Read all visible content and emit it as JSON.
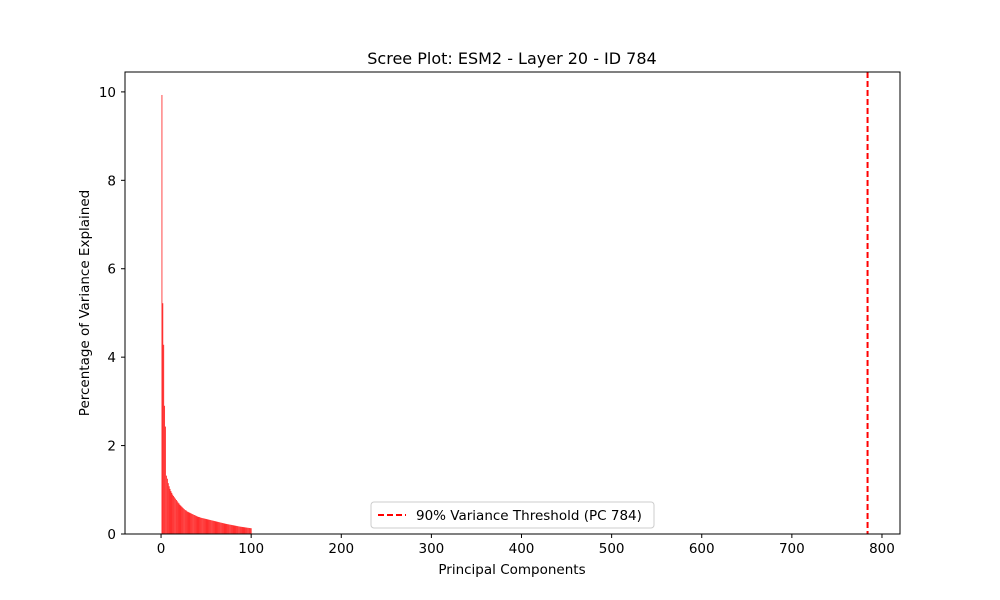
{
  "chart_data": {
    "type": "bar",
    "title": "Scree Plot: ESM2 - Layer 20 - ID 784",
    "xlabel": "Principal Components",
    "ylabel": "Percentage of Variance Explained",
    "xlim": [
      -40,
      820
    ],
    "ylim": [
      0,
      10.45
    ],
    "xticks": [
      0,
      100,
      200,
      300,
      400,
      500,
      600,
      700,
      800
    ],
    "yticks": [
      0,
      2,
      4,
      6,
      8,
      10
    ],
    "bar_color": "#ff0000",
    "grid": false,
    "series": [
      {
        "x": [
          1,
          2,
          3,
          4,
          5,
          6,
          7,
          8,
          9,
          10,
          11,
          12,
          13,
          14,
          15,
          16,
          17,
          18,
          19,
          20,
          21,
          22,
          23,
          24,
          25,
          26,
          27,
          28,
          29,
          30,
          31,
          32,
          33,
          34,
          35,
          36,
          37,
          38,
          39,
          40,
          41,
          42,
          43,
          44,
          45,
          46,
          47,
          48,
          49,
          50,
          51,
          52,
          53,
          54,
          55,
          56,
          57,
          58,
          59,
          60,
          61,
          62,
          63,
          64,
          65,
          66,
          67,
          68,
          69,
          70,
          71,
          72,
          73,
          74,
          75,
          76,
          77,
          78,
          79,
          80,
          81,
          82,
          83,
          84,
          85,
          86,
          87,
          88,
          89,
          90,
          91,
          92,
          93,
          94,
          95,
          96,
          97,
          98,
          99,
          100
        ],
        "values": [
          9.93,
          5.22,
          4.28,
          2.9,
          2.43,
          1.32,
          1.25,
          1.15,
          1.08,
          1.02,
          0.97,
          0.93,
          0.89,
          0.86,
          0.83,
          0.8,
          0.77,
          0.74,
          0.71,
          0.69,
          0.66,
          0.64,
          0.62,
          0.6,
          0.58,
          0.56,
          0.54,
          0.53,
          0.51,
          0.5,
          0.49,
          0.48,
          0.47,
          0.46,
          0.45,
          0.44,
          0.43,
          0.42,
          0.41,
          0.4,
          0.39,
          0.385,
          0.38,
          0.37,
          0.365,
          0.36,
          0.355,
          0.35,
          0.345,
          0.34,
          0.335,
          0.33,
          0.325,
          0.32,
          0.315,
          0.31,
          0.305,
          0.3,
          0.295,
          0.29,
          0.285,
          0.28,
          0.275,
          0.27,
          0.265,
          0.26,
          0.255,
          0.25,
          0.245,
          0.24,
          0.235,
          0.23,
          0.226,
          0.222,
          0.218,
          0.214,
          0.21,
          0.206,
          0.202,
          0.198,
          0.194,
          0.19,
          0.186,
          0.182,
          0.178,
          0.174,
          0.17,
          0.166,
          0.163,
          0.16,
          0.157,
          0.154,
          0.151,
          0.148,
          0.145,
          0.142,
          0.139,
          0.136,
          0.133,
          0.13
        ]
      }
    ],
    "threshold": {
      "x": 784,
      "label": "90% Variance Threshold (PC 784)",
      "color": "#ff0000",
      "style": "dashed"
    },
    "legend_position": "lower center"
  }
}
